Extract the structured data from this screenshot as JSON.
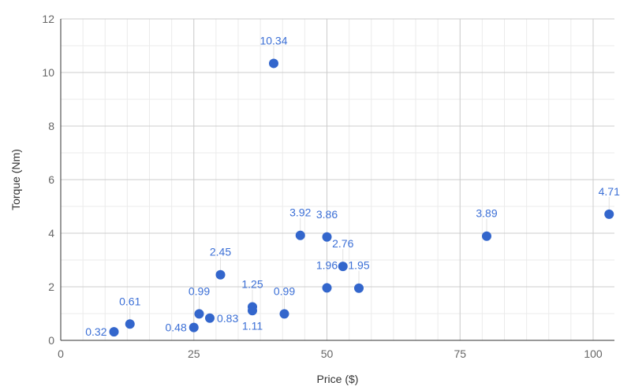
{
  "chart_data": {
    "type": "scatter",
    "xlabel": "Price ($)",
    "ylabel": "Torque (Nm)",
    "xlim": [
      0,
      104
    ],
    "ylim": [
      0,
      12
    ],
    "xticks": [
      0,
      25,
      50,
      75,
      100
    ],
    "yticks": [
      0,
      2,
      4,
      6,
      8,
      10,
      12
    ],
    "grid": true,
    "legend": "none",
    "color": "#3366cc",
    "label_color": "#3b6fd6",
    "points": [
      {
        "x": 10,
        "y": 0.32,
        "label": "0.32"
      },
      {
        "x": 13,
        "y": 0.61,
        "label": "0.61"
      },
      {
        "x": 25,
        "y": 0.48,
        "label": "0.48"
      },
      {
        "x": 26,
        "y": 0.99,
        "label": "0.99"
      },
      {
        "x": 28,
        "y": 0.83,
        "label": "0.83"
      },
      {
        "x": 30,
        "y": 2.45,
        "label": "2.45"
      },
      {
        "x": 36,
        "y": 1.11,
        "label": "1.11"
      },
      {
        "x": 36,
        "y": 1.25,
        "label": "1.25"
      },
      {
        "x": 40,
        "y": 10.34,
        "label": "10.34"
      },
      {
        "x": 42,
        "y": 0.99,
        "label": "0.99"
      },
      {
        "x": 45,
        "y": 3.92,
        "label": "3.92"
      },
      {
        "x": 50,
        "y": 3.86,
        "label": "3.86"
      },
      {
        "x": 53,
        "y": 2.76,
        "label": "2.76"
      },
      {
        "x": 50,
        "y": 1.96,
        "label": "1.96"
      },
      {
        "x": 56,
        "y": 1.95,
        "label": "1.95"
      },
      {
        "x": 80,
        "y": 3.89,
        "label": "3.89"
      },
      {
        "x": 103,
        "y": 4.71,
        "label": "4.71"
      }
    ]
  }
}
